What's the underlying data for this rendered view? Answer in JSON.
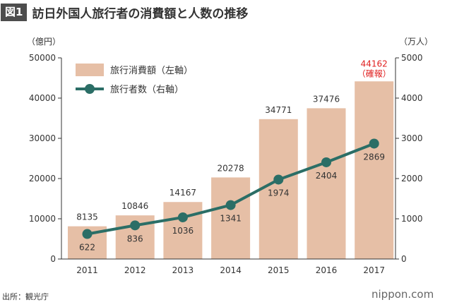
{
  "figure": {
    "badge": "図1",
    "title": "訪日外国人旅行者の消費額と人数の推移"
  },
  "units": {
    "left": "（億円）",
    "right": "（万人）"
  },
  "footer": {
    "source": "出所：観光庁",
    "brand": "nippon.com"
  },
  "colors": {
    "bar": "#e6bfa6",
    "line": "#2b6e66",
    "highlight": "#e02020",
    "axis": "#333333",
    "text": "#333333"
  },
  "chart_data": {
    "type": "bar",
    "categories": [
      "2011",
      "2012",
      "2013",
      "2014",
      "2015",
      "2016",
      "2017"
    ],
    "series": [
      {
        "name": "旅行消費額（左軸）",
        "type": "bar",
        "axis": "left",
        "values": [
          8135,
          10846,
          14167,
          20278,
          34771,
          37476,
          44162
        ]
      },
      {
        "name": "旅行者数（右軸）",
        "type": "line",
        "axis": "right",
        "values": [
          622,
          836,
          1036,
          1341,
          1974,
          2404,
          2869
        ]
      }
    ],
    "left_axis": {
      "min": 0,
      "max": 50000,
      "ticks": [
        "0",
        "10000",
        "20000",
        "30000",
        "40000",
        "50000"
      ]
    },
    "right_axis": {
      "min": 0,
      "max": 5000,
      "ticks": [
        "0",
        "1000",
        "2000",
        "3000",
        "4000",
        "5000"
      ]
    },
    "bar_labels": [
      "8135",
      "10846",
      "14167",
      "20278",
      "34771",
      "37476",
      "44162"
    ],
    "line_labels": [
      "622",
      "836",
      "1036",
      "1341",
      "1974",
      "2404",
      "2869"
    ],
    "annotation": "（確報）",
    "legend_position": "top-left",
    "grid": false
  }
}
